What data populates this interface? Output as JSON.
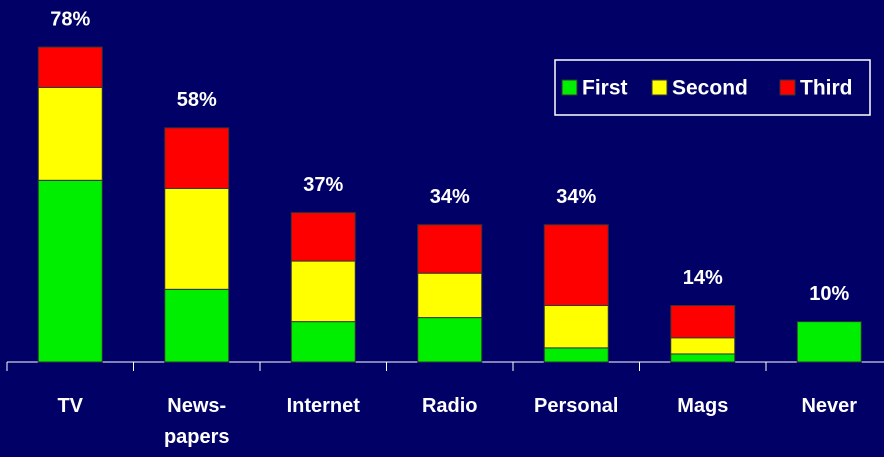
{
  "chart_data": {
    "type": "stacked_bar",
    "categories": [
      "TV",
      "News-\npapers",
      "Internet",
      "Radio",
      "Personal",
      "Mags",
      "Never"
    ],
    "series": [
      {
        "name": "First",
        "color": "#00ee00",
        "values": [
          45,
          18,
          10,
          11,
          3.5,
          2,
          10
        ]
      },
      {
        "name": "Second",
        "color": "#ffff00",
        "values": [
          23,
          25,
          15,
          11,
          10.5,
          4,
          0
        ]
      },
      {
        "name": "Third",
        "color": "#ff0000",
        "values": [
          10,
          15,
          12,
          12,
          20,
          8,
          0
        ]
      }
    ],
    "totals": [
      78,
      58,
      37,
      34,
      34,
      14,
      10
    ],
    "value_labels": [
      "78%",
      "58%",
      "37%",
      "34%",
      "34%",
      "14%",
      "10%"
    ],
    "ylim": [
      0,
      80
    ],
    "legend": "top-right"
  }
}
